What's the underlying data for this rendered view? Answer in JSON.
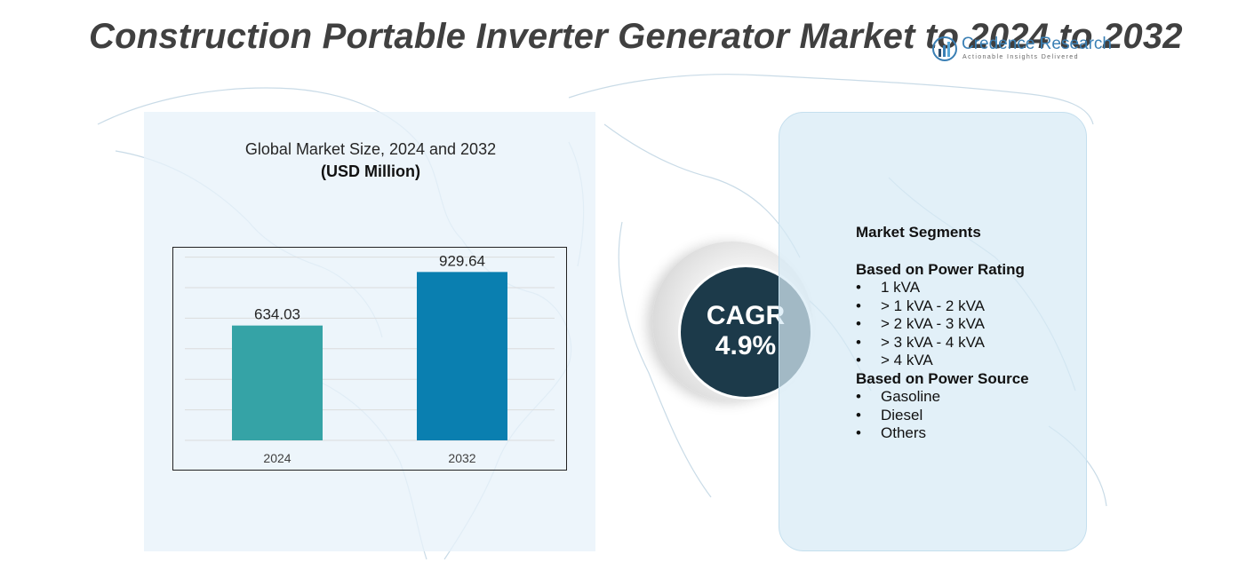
{
  "title": "Construction Portable Inverter Generator Market to 2024 to 2032",
  "logo": {
    "name": "Credence Research",
    "tagline": "Actionable Insights Delivered"
  },
  "chart_data": {
    "type": "bar",
    "title": "Global Market Size,  2024 and 2032",
    "unit": "(USD Million)",
    "categories": [
      "2024",
      "2032"
    ],
    "values": [
      634.03,
      929.64
    ],
    "value_labels": [
      "634.03",
      "929.64"
    ],
    "colors": [
      "#35a3a6",
      "#0a7fb0"
    ],
    "ylim": [
      0,
      1000
    ],
    "grid": true,
    "legend": "none"
  },
  "cagr": {
    "label": "CAGR",
    "value": "4.9%"
  },
  "segments": {
    "heading": "Market Segments",
    "groups": [
      {
        "title": "Based on Power Rating",
        "items": [
          "1 kVA",
          "> 1 kVA - 2 kVA",
          "> 2 kVA - 3 kVA",
          "> 3 kVA - 4 kVA",
          "> 4 kVA"
        ]
      },
      {
        "title": "Based on Power Source",
        "items": [
          "Gasoline",
          "Diesel",
          "Others"
        ]
      }
    ],
    "bullet": "•"
  },
  "colors": {
    "title": "#404040",
    "cagr_circle": "#1c3a4a",
    "panel": "#e8f2fa",
    "map_lines": "#c9dbe7"
  }
}
